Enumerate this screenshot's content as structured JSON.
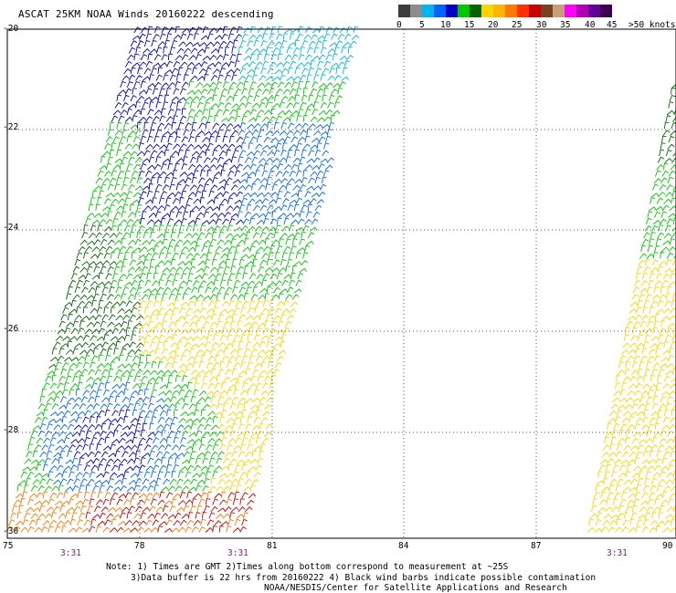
{
  "title": "ASCAT 25KM NOAA Winds 20160222 descending",
  "legend": {
    "colors": [
      "#3c3c3c",
      "#8c8c8c",
      "#00b4f0",
      "#0064ff",
      "#0000c8",
      "#00c800",
      "#006400",
      "#ffd200",
      "#ffb400",
      "#ff7800",
      "#ff3200",
      "#c80000",
      "#7a4020",
      "#c8a078",
      "#ff00ff",
      "#b400b4",
      "#640096",
      "#3c0050"
    ],
    "labels": [
      "0",
      "5",
      "10",
      "15",
      "20",
      "25",
      "30",
      "35",
      "40",
      "45",
      ">50 knots"
    ]
  },
  "y_axis": {
    "labels": [
      "-20",
      "-22",
      "-24",
      "-26",
      "-28",
      "-30"
    ]
  },
  "x_axis": {
    "labels": [
      "75",
      "78",
      "81",
      "84",
      "87",
      "90"
    ]
  },
  "time_labels": [
    "3:31",
    "3:31",
    "3:31"
  ],
  "notes": [
    "Note: 1) Times are GMT 2)Times along bottom correspond to measurement at ~25S",
    "3)Data buffer is 22 hrs from 20160222 4) Black wind barbs indicate possible contamination",
    "NOAA/NESDIS/Center for Satellite Applications and Research"
  ]
}
